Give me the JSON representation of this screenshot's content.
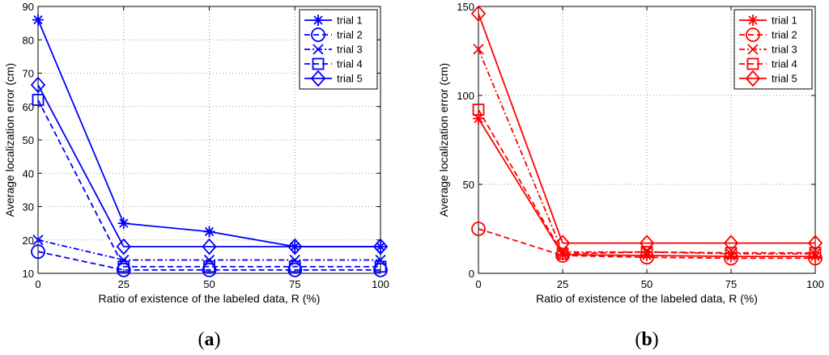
{
  "chart_data": [
    {
      "type": "line",
      "panel_label": "a",
      "color": "#0000ff",
      "x": [
        0,
        25,
        50,
        75,
        100
      ],
      "xlim": [
        0,
        100
      ],
      "ylim": [
        10,
        90
      ],
      "xticks": [
        0,
        25,
        50,
        75,
        100
      ],
      "yticks": [
        10,
        20,
        30,
        40,
        50,
        60,
        70,
        80,
        90
      ],
      "grid": true,
      "xlabel": "Ratio of existence of the labeled data, R (%)",
      "ylabel": "Average localization error (cm)",
      "legend_position": "top-right",
      "series": [
        {
          "name": "trial 1",
          "marker": "asterisk",
          "line": "solid",
          "values": [
            86,
            25,
            22.5,
            18,
            18
          ]
        },
        {
          "name": "trial 2",
          "marker": "circle",
          "line": "dashed",
          "values": [
            16.5,
            11,
            11,
            11,
            11
          ]
        },
        {
          "name": "trial 3",
          "marker": "x",
          "line": "dashdot",
          "values": [
            20,
            14,
            14,
            14,
            14
          ]
        },
        {
          "name": "trial 4",
          "marker": "square",
          "line": "dashed",
          "values": [
            62,
            12,
            12,
            12,
            12
          ]
        },
        {
          "name": "trial 5",
          "marker": "diamond",
          "line": "solid",
          "values": [
            66.5,
            18,
            18,
            18,
            18
          ]
        }
      ]
    },
    {
      "type": "line",
      "panel_label": "b",
      "color": "#ff0000",
      "x": [
        0,
        25,
        50,
        75,
        100
      ],
      "xlim": [
        0,
        100
      ],
      "ylim": [
        0,
        150
      ],
      "xticks": [
        0,
        25,
        50,
        75,
        100
      ],
      "yticks": [
        0,
        50,
        100,
        150
      ],
      "grid": true,
      "xlabel": "Ratio of existence of the labeled data, R (%)",
      "ylabel": "Average localization error (cm)",
      "legend_position": "top-right",
      "series": [
        {
          "name": "trial 1",
          "marker": "asterisk",
          "line": "solid",
          "values": [
            87,
            10.5,
            10,
            9.5,
            9.5
          ]
        },
        {
          "name": "trial 2",
          "marker": "circle",
          "line": "dashed",
          "values": [
            25,
            10,
            9,
            8.5,
            8.5
          ]
        },
        {
          "name": "trial 3",
          "marker": "x",
          "line": "dashdot",
          "values": [
            126,
            12,
            12,
            11,
            11
          ]
        },
        {
          "name": "trial 4",
          "marker": "square",
          "line": "dashed",
          "values": [
            92,
            11,
            12,
            11.5,
            11.5
          ]
        },
        {
          "name": "trial 5",
          "marker": "diamond",
          "line": "solid",
          "values": [
            146,
            17,
            17,
            17,
            17
          ]
        }
      ]
    }
  ]
}
